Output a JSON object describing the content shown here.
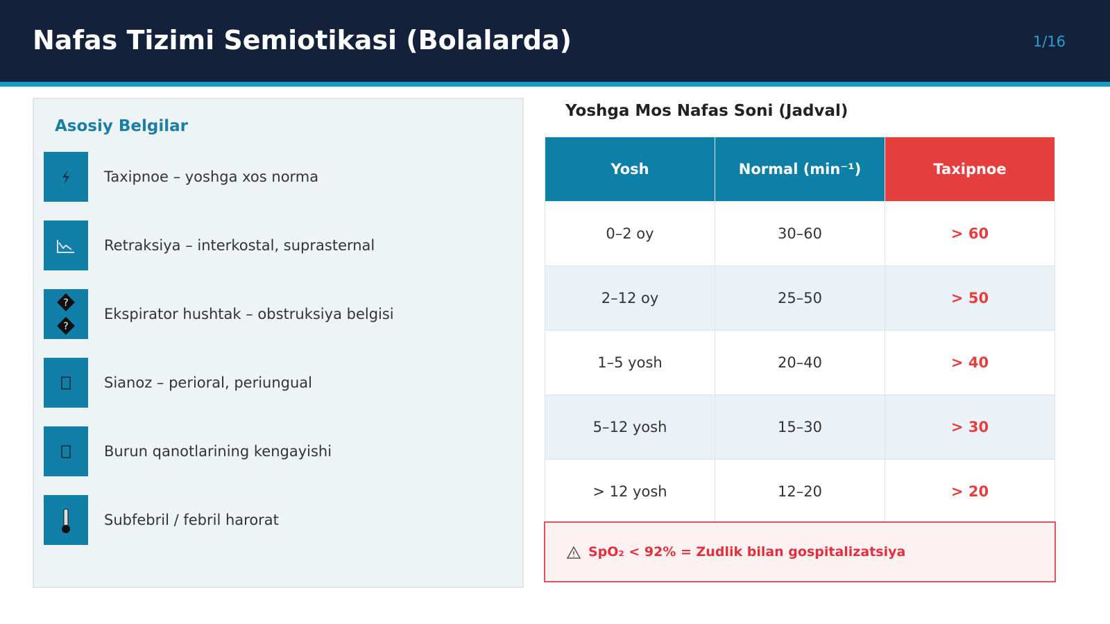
{
  "header": {
    "title": "Nafas Tizimi Semiotikasi (Bolalarda)",
    "page": "1/16"
  },
  "signs": {
    "title": "Asosiy Belgilar",
    "items": [
      "Taxipnoe – yoshga xos norma",
      "Retraksiya – interkostal, suprasternal",
      "Ekspirator hushtak – obstruksiya belgisi",
      "Sianoz – perioral, periungual",
      "Burun qanotlarining kengayishi",
      "Subfebril / febril harorat"
    ]
  },
  "table": {
    "title": "Yoshga Mos Nafas Soni (Jadval)",
    "headers": [
      "Yosh",
      "Normal (min⁻¹)",
      "Taxipnoe"
    ],
    "rows": [
      [
        "0–2 oy",
        "30–60",
        "> 60"
      ],
      [
        "2–12 oy",
        "25–50",
        "> 50"
      ],
      [
        "1–5 yosh",
        "20–40",
        "> 40"
      ],
      [
        "5–12 yosh",
        "15–30",
        "> 30"
      ],
      [
        "> 12 yosh",
        "12–20",
        "> 20"
      ]
    ]
  },
  "alert": {
    "text": "SpO₂ < 92% = Zudlik bilan gospitalizatsiya"
  }
}
